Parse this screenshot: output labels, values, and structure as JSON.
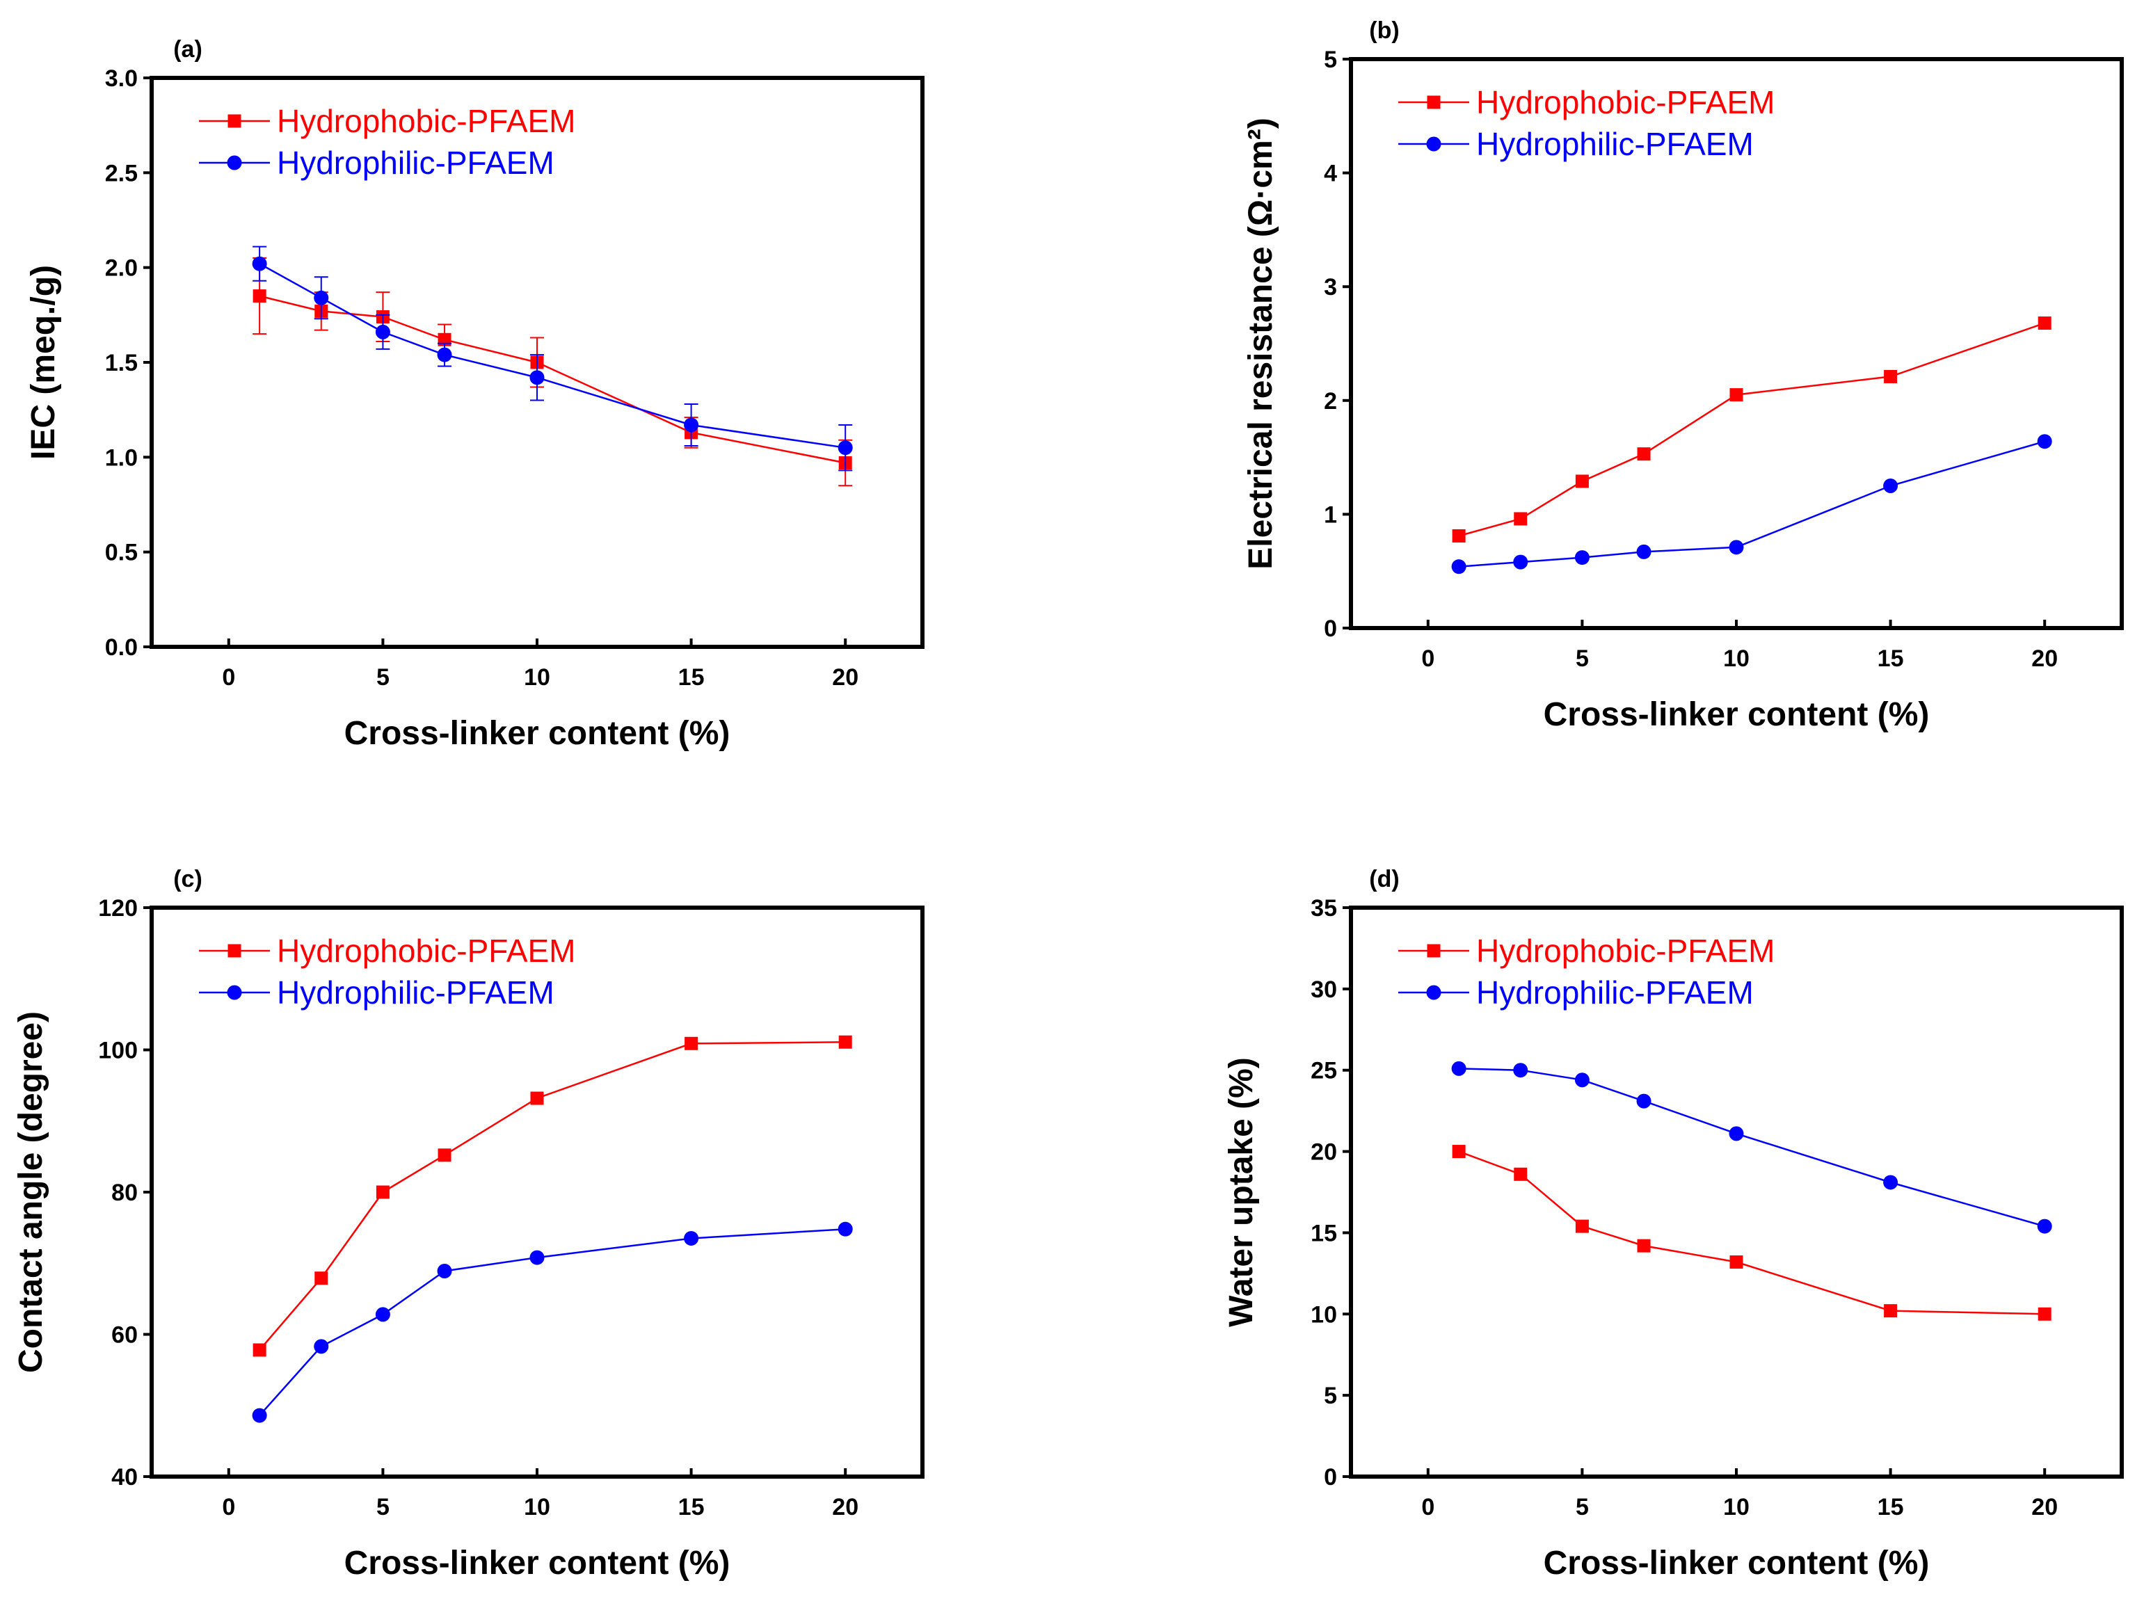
{
  "colors": {
    "hydrophobic": "#ff0000",
    "hydrophilic": "#0000ff",
    "axis": "#000000"
  },
  "chart_data": [
    {
      "type": "line",
      "panel_label": "(a)",
      "xlabel": "Cross-linker content (%)",
      "ylabel": "IEC (meq./g)",
      "xlim": [
        -2.5,
        22.5
      ],
      "ylim": [
        0,
        3
      ],
      "xticks": [
        0,
        5,
        10,
        15,
        20
      ],
      "xtick_labels": [
        "0",
        "5",
        "10",
        "15",
        "20"
      ],
      "yticks": [
        0,
        0.5,
        1,
        1.5,
        2,
        2.5,
        3
      ],
      "ytick_labels": [
        "0.0",
        "0.5",
        "1.0",
        "1.5",
        "2.0",
        "2.5",
        "3.0"
      ],
      "x": [
        1,
        3,
        5,
        7,
        10,
        15,
        20
      ],
      "legend_position": "top-left",
      "series": [
        {
          "name": "Hydrophobic-PFAEM",
          "marker": "square",
          "color": "#ff0000",
          "values": [
            1.85,
            1.77,
            1.74,
            1.62,
            1.5,
            1.13,
            0.97
          ],
          "errors": [
            0.2,
            0.1,
            0.13,
            0.08,
            0.13,
            0.08,
            0.12
          ]
        },
        {
          "name": "Hydrophilic-PFAEM",
          "marker": "circle",
          "color": "#0000ff",
          "values": [
            2.02,
            1.84,
            1.66,
            1.54,
            1.42,
            1.17,
            1.05
          ],
          "errors": [
            0.09,
            0.11,
            0.09,
            0.06,
            0.12,
            0.11,
            0.12
          ]
        }
      ]
    },
    {
      "type": "line",
      "panel_label": "(b)",
      "xlabel": "Cross-linker content (%)",
      "ylabel": "Electrical resistance (Ω·cm²)",
      "xlim": [
        -2.5,
        22.5
      ],
      "ylim": [
        0,
        5
      ],
      "xticks": [
        0,
        5,
        10,
        15,
        20
      ],
      "xtick_labels": [
        "0",
        "5",
        "10",
        "15",
        "20"
      ],
      "yticks": [
        0,
        1,
        2,
        3,
        4,
        5
      ],
      "ytick_labels": [
        "0",
        "1",
        "2",
        "3",
        "4",
        "5"
      ],
      "x": [
        1,
        3,
        5,
        7,
        10,
        15,
        20
      ],
      "legend_position": "top-left",
      "series": [
        {
          "name": "Hydrophobic-PFAEM",
          "marker": "square",
          "color": "#ff0000",
          "values": [
            0.81,
            0.96,
            1.29,
            1.53,
            2.05,
            2.21,
            2.68
          ]
        },
        {
          "name": "Hydrophilic-PFAEM",
          "marker": "circle",
          "color": "#0000ff",
          "values": [
            0.54,
            0.58,
            0.62,
            0.67,
            0.71,
            1.25,
            1.64
          ]
        }
      ]
    },
    {
      "type": "line",
      "panel_label": "(c)",
      "xlabel": "Cross-linker content (%)",
      "ylabel": "Contact angle (degree)",
      "xlim": [
        -2.5,
        22.5
      ],
      "ylim": [
        40,
        120
      ],
      "xticks": [
        0,
        5,
        10,
        15,
        20
      ],
      "xtick_labels": [
        "0",
        "5",
        "10",
        "15",
        "20"
      ],
      "yticks": [
        40,
        60,
        80,
        100,
        120
      ],
      "ytick_labels": [
        "40",
        "60",
        "80",
        "100",
        "120"
      ],
      "x": [
        1,
        3,
        5,
        7,
        10,
        15,
        20
      ],
      "legend_position": "top-left",
      "series": [
        {
          "name": "Hydrophobic-PFAEM",
          "marker": "square",
          "color": "#ff0000",
          "values": [
            57.8,
            67.9,
            80.0,
            85.2,
            93.2,
            100.9,
            101.1
          ]
        },
        {
          "name": "Hydrophilic-PFAEM",
          "marker": "circle",
          "color": "#0000ff",
          "values": [
            48.6,
            58.3,
            62.8,
            68.9,
            70.8,
            73.5,
            74.8
          ]
        }
      ]
    },
    {
      "type": "line",
      "panel_label": "(d)",
      "xlabel": "Cross-linker content (%)",
      "ylabel": "Water uptake (%)",
      "xlim": [
        -2.5,
        22.5
      ],
      "ylim": [
        0,
        35
      ],
      "xticks": [
        0,
        5,
        10,
        15,
        20
      ],
      "xtick_labels": [
        "0",
        "5",
        "10",
        "15",
        "20"
      ],
      "yticks": [
        0,
        5,
        10,
        15,
        20,
        25,
        30,
        35
      ],
      "ytick_labels": [
        "0",
        "5",
        "10",
        "15",
        "20",
        "25",
        "30",
        "35"
      ],
      "x": [
        1,
        3,
        5,
        7,
        10,
        15,
        20
      ],
      "legend_position": "top-left",
      "series": [
        {
          "name": "Hydrophobic-PFAEM",
          "marker": "square",
          "color": "#ff0000",
          "values": [
            20.0,
            18.6,
            15.4,
            14.2,
            13.2,
            10.2,
            10.0
          ]
        },
        {
          "name": "Hydrophilic-PFAEM",
          "marker": "circle",
          "color": "#0000ff",
          "values": [
            25.1,
            25.0,
            24.4,
            23.1,
            21.1,
            18.1,
            15.4
          ]
        }
      ]
    }
  ]
}
